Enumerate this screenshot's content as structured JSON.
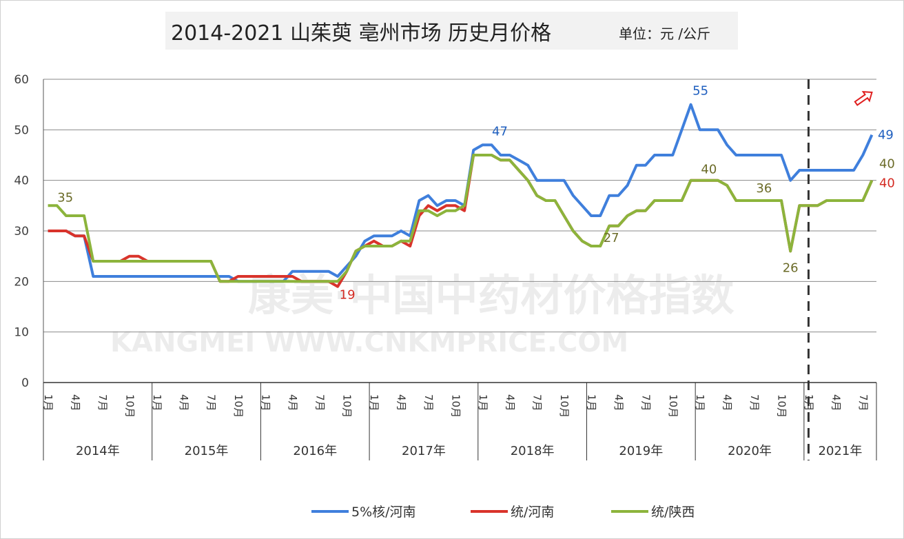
{
  "title": {
    "main": "2014-2021 山茱萸 亳州市场 历史月价格",
    "unit": "单位：元 /公斤"
  },
  "watermark": {
    "line1": "康美·中国中药材价格指数",
    "line2": "KANGMEI  WWW.CNKMPRICE.COM"
  },
  "colors": {
    "blue": "#3f7fdc",
    "red": "#d9332b",
    "green": "#8cb43c",
    "blue_label": "#1f5fbf",
    "red_label": "#d42a22",
    "green_label": "#6b6b28",
    "arrow": "#e02020"
  },
  "icons": {
    "trend": "up-right-outline-arrow-icon"
  },
  "chart_data": {
    "type": "line",
    "title": "2014-2021 山茱萸 亳州市场 历史月价格",
    "ylim": [
      0,
      60
    ],
    "yticks": [
      0,
      10,
      20,
      30,
      40,
      50,
      60
    ],
    "grid": true,
    "legend_position": "bottom",
    "years": [
      "2014年",
      "2015年",
      "2016年",
      "2017年",
      "2018年",
      "2019年",
      "2020年",
      "2021年"
    ],
    "month_ticks": [
      "1月",
      "4月",
      "7月",
      "10月"
    ],
    "months_in_last_year": 8,
    "reference_line": "2021年1月 (dashed)",
    "series": [
      {
        "name": "5%核/河南",
        "color": "blue",
        "values": [
          30,
          30,
          30,
          29,
          29,
          21,
          21,
          21,
          21,
          21,
          21,
          21,
          21,
          21,
          21,
          21,
          21,
          21,
          21,
          21,
          21,
          20,
          20,
          20,
          20,
          20,
          20,
          22,
          22,
          22,
          22,
          22,
          21,
          23,
          25,
          28,
          29,
          29,
          29,
          30,
          29,
          36,
          37,
          35,
          36,
          36,
          35,
          46,
          47,
          47,
          45,
          45,
          44,
          43,
          40,
          40,
          40,
          40,
          37,
          35,
          33,
          33,
          37,
          37,
          39,
          43,
          43,
          45,
          45,
          45,
          50,
          55,
          50,
          50,
          50,
          47,
          45,
          45,
          45,
          45,
          45,
          45,
          40,
          42,
          42,
          42,
          42,
          42,
          42,
          42,
          45,
          49
        ]
      },
      {
        "name": "统/河南",
        "color": "red",
        "values": [
          30,
          30,
          30,
          29,
          29,
          24,
          24,
          24,
          24,
          25,
          25,
          24,
          24,
          24,
          24,
          24,
          24,
          24,
          24,
          20,
          20,
          21,
          21,
          21,
          21,
          21,
          21,
          21,
          20,
          20,
          20,
          20,
          19,
          22,
          26,
          27,
          28,
          27,
          27,
          28,
          27,
          33,
          35,
          34,
          35,
          35,
          34,
          45,
          45,
          45,
          44,
          44,
          42,
          40,
          37,
          36,
          36,
          33,
          30,
          28,
          27,
          27,
          31,
          31,
          33,
          34,
          34,
          36,
          36,
          36,
          36,
          40,
          40,
          40,
          40,
          39,
          36,
          36,
          36,
          36,
          36,
          36,
          26,
          35,
          35,
          35,
          36,
          36,
          36,
          36,
          36,
          40
        ]
      },
      {
        "name": "统/陕西",
        "color": "green",
        "values": [
          35,
          35,
          33,
          33,
          33,
          24,
          24,
          24,
          24,
          24,
          24,
          24,
          24,
          24,
          24,
          24,
          24,
          24,
          24,
          20,
          20,
          20,
          20,
          20,
          20,
          20,
          20,
          20,
          20,
          20,
          20,
          20,
          20,
          22,
          26,
          27,
          27,
          27,
          27,
          28,
          28,
          34,
          34,
          33,
          34,
          34,
          35,
          45,
          45,
          45,
          44,
          44,
          42,
          40,
          37,
          36,
          36,
          33,
          30,
          28,
          27,
          27,
          31,
          31,
          33,
          34,
          34,
          36,
          36,
          36,
          36,
          40,
          40,
          40,
          40,
          39,
          36,
          36,
          36,
          36,
          36,
          36,
          26,
          35,
          35,
          35,
          36,
          36,
          36,
          36,
          36,
          40
        ]
      }
    ],
    "annotations": [
      {
        "text": "35",
        "series": "统/陕西",
        "month_index": 1,
        "color": "green_label"
      },
      {
        "text": "19",
        "series": "统/河南",
        "month_index": 32,
        "color": "red_label"
      },
      {
        "text": "47",
        "series": "5%核/河南",
        "month_index": 49,
        "color": "blue_label"
      },
      {
        "text": "27",
        "series": "统/陕西",
        "month_index": 61,
        "color": "green_label"
      },
      {
        "text": "55",
        "series": "5%核/河南",
        "month_index": 71,
        "color": "blue_label"
      },
      {
        "text": "40",
        "series": "统/陕西",
        "month_index": 73,
        "color": "green_label"
      },
      {
        "text": "36",
        "series": "统/陕西",
        "month_index": 80,
        "color": "green_label"
      },
      {
        "text": "26",
        "series": "统/陕西",
        "month_index": 82,
        "color": "green_label"
      },
      {
        "text": "49",
        "series": "5%核/河南",
        "month_index": 91,
        "color": "blue_label"
      },
      {
        "text": "40",
        "series": "统/陕西",
        "month_index": 91,
        "color": "green_label"
      },
      {
        "text": "40",
        "series": "统/河南",
        "month_index": 91,
        "color": "red_label"
      }
    ]
  }
}
